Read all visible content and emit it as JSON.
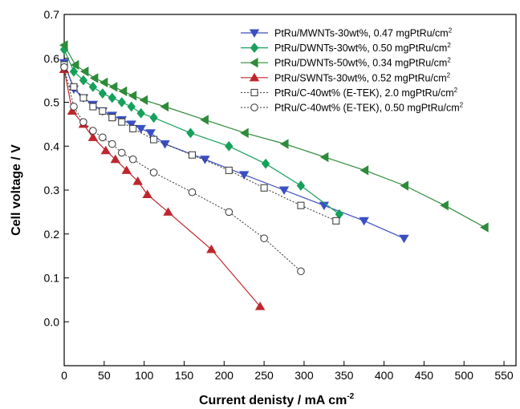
{
  "chart_data": {
    "type": "line",
    "xlabel": "Current denisty / mA cm",
    "xlabel_sup": "-2",
    "ylabel": "Cell voltage / V",
    "xlim": [
      0,
      565
    ],
    "ylim": [
      -0.1,
      0.7
    ],
    "x_ticks": [
      "0",
      "50",
      "100",
      "150",
      "200",
      "250",
      "300",
      "350",
      "400",
      "450",
      "500",
      "550"
    ],
    "y_ticks": [
      "0.0",
      "0.1",
      "0.2",
      "0.3",
      "0.4",
      "0.5",
      "0.6",
      "0.7"
    ],
    "legend_position": "top-right",
    "series": [
      {
        "name": "PtRu/MWNTs-30wt%, 0.47 mgPtRu/cm",
        "name_sup": "2",
        "color": "#3b4fc4",
        "marker": "triangle-down",
        "filled": true,
        "dashed": false,
        "x": [
          0,
          12,
          24,
          36,
          48,
          60,
          72,
          84,
          96,
          108,
          126,
          176,
          225,
          275,
          325,
          375,
          425
        ],
        "y": [
          0.59,
          0.53,
          0.51,
          0.495,
          0.48,
          0.47,
          0.46,
          0.45,
          0.44,
          0.43,
          0.405,
          0.37,
          0.335,
          0.3,
          0.265,
          0.23,
          0.19
        ]
      },
      {
        "name": "PtRu/DWNTs-30wt%, 0.50 mgPtRu/cm",
        "name_sup": "2",
        "color": "#16a05a",
        "marker": "diamond",
        "filled": true,
        "dashed": false,
        "x": [
          0,
          12,
          24,
          36,
          48,
          60,
          72,
          84,
          96,
          112,
          158,
          206,
          252,
          296,
          344
        ],
        "y": [
          0.62,
          0.57,
          0.55,
          0.535,
          0.52,
          0.51,
          0.5,
          0.49,
          0.475,
          0.465,
          0.43,
          0.4,
          0.36,
          0.31,
          0.245
        ]
      },
      {
        "name": "PtRu/DWNTs-50wt%, 0.34 mgPtRu/cm",
        "name_sup": "2",
        "color": "#2e8b3a",
        "marker": "triangle-left",
        "filled": true,
        "dashed": false,
        "x": [
          0,
          14,
          26,
          38,
          50,
          62,
          74,
          86,
          100,
          126,
          176,
          226,
          276,
          326,
          376,
          426,
          476,
          526
        ],
        "y": [
          0.63,
          0.585,
          0.57,
          0.555,
          0.545,
          0.535,
          0.525,
          0.515,
          0.505,
          0.49,
          0.46,
          0.43,
          0.405,
          0.375,
          0.345,
          0.31,
          0.265,
          0.215
        ]
      },
      {
        "name": "PtRu/SWNTs-30wt%, 0.52 mgPtRu/cm",
        "name_sup": "2",
        "color": "#c0262d",
        "marker": "triangle-up",
        "filled": true,
        "dashed": false,
        "x": [
          0,
          10,
          24,
          36,
          52,
          64,
          78,
          92,
          104,
          130,
          184,
          245
        ],
        "y": [
          0.575,
          0.48,
          0.45,
          0.42,
          0.39,
          0.37,
          0.345,
          0.32,
          0.29,
          0.25,
          0.165,
          0.035
        ]
      },
      {
        "name": "PtRu/C-40wt% (E-TEK), 2.0 mgPtRu/cm",
        "name_sup": "2",
        "color": "#000000",
        "marker": "square",
        "filled": false,
        "dashed": true,
        "x": [
          0,
          12,
          24,
          36,
          48,
          60,
          72,
          86,
          112,
          160,
          206,
          250,
          296,
          340
        ],
        "y": [
          0.585,
          0.535,
          0.51,
          0.49,
          0.48,
          0.465,
          0.455,
          0.44,
          0.415,
          0.38,
          0.345,
          0.305,
          0.265,
          0.23
        ]
      },
      {
        "name": "PtRu/C-40wt% (E-TEK), 0.50 mgPtRu/cm",
        "name_sup": "2",
        "color": "#000000",
        "marker": "circle",
        "filled": false,
        "dashed": true,
        "x": [
          0,
          12,
          24,
          36,
          48,
          60,
          72,
          86,
          112,
          160,
          206,
          250,
          296
        ],
        "y": [
          0.58,
          0.49,
          0.455,
          0.435,
          0.42,
          0.405,
          0.385,
          0.37,
          0.34,
          0.295,
          0.25,
          0.19,
          0.115
        ]
      }
    ]
  }
}
